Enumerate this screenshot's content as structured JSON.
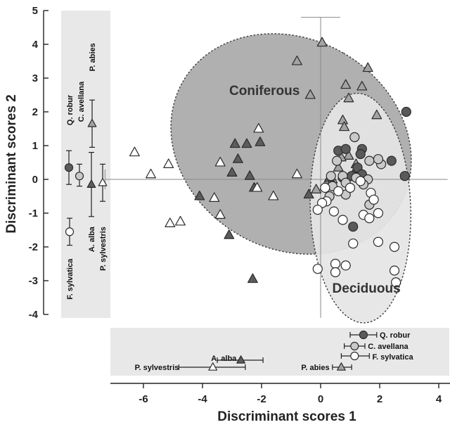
{
  "chart_data": {
    "type": "scatter",
    "xlabel": "Discriminant scores 1",
    "ylabel": "Discriminant scores 2",
    "xlim": [
      -7.3,
      4.3
    ],
    "ylim": [
      -4.1,
      5.1
    ],
    "x_ticks": [
      -6,
      -4,
      -2,
      0,
      2,
      4
    ],
    "y_ticks": [
      -4,
      -3,
      -2,
      -1,
      0,
      1,
      2,
      3,
      4,
      5
    ],
    "grid": false,
    "groups": [
      {
        "label": "Coniferous",
        "label_x": -1.9,
        "label_y": 2.5,
        "cx": -1.0,
        "cy": 1.05,
        "rx": 3.55,
        "ry": 3.7,
        "angle": 60,
        "fill": "#a9a9a9"
      },
      {
        "label": "Deciduous",
        "label_x": 1.55,
        "label_y": -3.35,
        "cx": 1.35,
        "cy": -0.85,
        "rx": 1.7,
        "ry": 3.4,
        "angle": 2,
        "fill": "#e5e5e5"
      }
    ],
    "series": [
      {
        "name": "P. abies",
        "marker": "triangle",
        "fill": "#a3a3a3",
        "points": [
          [
            0.05,
            4.05
          ],
          [
            -0.8,
            3.5
          ],
          [
            0.85,
            2.8
          ],
          [
            1.6,
            3.3
          ],
          [
            -0.35,
            2.5
          ],
          [
            1.4,
            2.75
          ],
          [
            0.95,
            2.4
          ],
          [
            1.9,
            1.9
          ],
          [
            0.75,
            1.75
          ],
          [
            0.8,
            1.55
          ],
          [
            0.95,
            0.7
          ],
          [
            1.2,
            0.45
          ],
          [
            0.7,
            0.65
          ],
          [
            0.6,
            0.35
          ],
          [
            1.3,
            0.3
          ],
          [
            0.4,
            0.0
          ],
          [
            -0.15,
            -0.3
          ]
        ]
      },
      {
        "name": "A. alba",
        "marker": "triangle",
        "fill": "#5c5c5c",
        "points": [
          [
            -2.9,
            1.05
          ],
          [
            -2.8,
            0.6
          ],
          [
            -2.05,
            1.1
          ],
          [
            -2.5,
            1.05
          ],
          [
            -3.0,
            0.2
          ],
          [
            -2.4,
            0.1
          ],
          [
            -4.1,
            -0.5
          ],
          [
            -2.25,
            -0.25
          ],
          [
            -3.1,
            -1.65
          ],
          [
            -2.3,
            -2.95
          ],
          [
            -0.4,
            -0.45
          ],
          [
            1.2,
            0.3
          ],
          [
            0.3,
            0.05
          ]
        ]
      },
      {
        "name": "P. sylvestris",
        "marker": "triangle",
        "fill": "#ffffff",
        "points": [
          [
            -6.3,
            0.8
          ],
          [
            -5.75,
            0.15
          ],
          [
            -5.15,
            0.45
          ],
          [
            -2.1,
            1.5
          ],
          [
            -3.4,
            0.5
          ],
          [
            -5.1,
            -1.3
          ],
          [
            -4.75,
            -1.25
          ],
          [
            -3.6,
            -0.55
          ],
          [
            -3.4,
            -1.05
          ],
          [
            -1.6,
            -0.5
          ],
          [
            -2.15,
            -0.25
          ],
          [
            -0.8,
            0.15
          ],
          [
            0.15,
            -0.2
          ]
        ]
      },
      {
        "name": "Q. robur",
        "marker": "circle",
        "fill": "#5a5a5a",
        "points": [
          [
            2.9,
            2.0
          ],
          [
            0.6,
            0.85
          ],
          [
            0.85,
            0.9
          ],
          [
            1.4,
            0.9
          ],
          [
            1.35,
            0.75
          ],
          [
            1.05,
            0.1
          ],
          [
            0.75,
            0.05
          ],
          [
            2.4,
            0.55
          ],
          [
            1.25,
            0.35
          ],
          [
            1.4,
            0.15
          ],
          [
            2.85,
            0.1
          ],
          [
            1.1,
            -1.4
          ]
        ]
      },
      {
        "name": "C. avellana",
        "marker": "circle",
        "fill": "#c9c9c9",
        "points": [
          [
            1.15,
            1.25
          ],
          [
            2.05,
            0.45
          ],
          [
            1.95,
            0.6
          ],
          [
            1.65,
            0.55
          ],
          [
            0.55,
            0.55
          ],
          [
            0.35,
            0.1
          ],
          [
            0.75,
            0.1
          ],
          [
            1.6,
            0.0
          ],
          [
            1.2,
            0.05
          ],
          [
            0.4,
            -0.2
          ],
          [
            1.45,
            -0.15
          ],
          [
            0.85,
            -0.1
          ],
          [
            0.3,
            -0.5
          ],
          [
            0.85,
            -0.45
          ],
          [
            1.65,
            -0.75
          ]
        ]
      },
      {
        "name": "F. sylvatica",
        "marker": "circle",
        "fill": "#ffffff",
        "points": [
          [
            0.15,
            -0.25
          ],
          [
            0.6,
            -0.35
          ],
          [
            1.0,
            -0.25
          ],
          [
            1.35,
            -0.05
          ],
          [
            1.7,
            -0.4
          ],
          [
            1.8,
            -0.6
          ],
          [
            0.2,
            -0.65
          ],
          [
            0.05,
            -0.7
          ],
          [
            -0.1,
            -0.9
          ],
          [
            0.45,
            -0.95
          ],
          [
            0.75,
            -1.2
          ],
          [
            1.45,
            -1.05
          ],
          [
            1.65,
            -1.15
          ],
          [
            1.95,
            -1.0
          ],
          [
            1.1,
            -1.9
          ],
          [
            1.95,
            -1.85
          ],
          [
            2.5,
            -2.0
          ],
          [
            0.5,
            -2.5
          ],
          [
            0.85,
            -2.55
          ],
          [
            0.5,
            -2.75
          ],
          [
            -0.1,
            -2.65
          ],
          [
            2.5,
            -2.7
          ],
          [
            2.55,
            -3.05
          ]
        ]
      }
    ],
    "y_side_panel": {
      "labels": [
        {
          "text": "Q. robur",
          "anchor_y": 1.6
        },
        {
          "text": "C. avellana",
          "anchor_y": 1.7
        },
        {
          "text": "P. abies",
          "anchor_y": 3.2
        },
        {
          "text": "F. sylvatica",
          "anchor_y": -2.35
        },
        {
          "text": "A. alba",
          "anchor_y": -1.4
        },
        {
          "text": "P. sylvestris",
          "anchor_y": -1.4
        }
      ],
      "means": [
        {
          "series": "F. sylvatica",
          "mean": -1.55,
          "low": -1.95,
          "high": -1.15,
          "marker": "circle",
          "fill": "#ffffff"
        },
        {
          "series": "Q. robur",
          "mean": 0.35,
          "low": -0.15,
          "high": 0.85,
          "marker": "circle",
          "fill": "#5a5a5a"
        },
        {
          "series": "C. avellana",
          "mean": 0.1,
          "low": -0.2,
          "high": 0.45,
          "marker": "circle",
          "fill": "#c9c9c9"
        },
        {
          "series": "A. alba",
          "mean": -0.15,
          "low": -1.1,
          "high": 0.8,
          "marker": "triangle",
          "fill": "#5c5c5c"
        },
        {
          "series": "P. abies",
          "mean": 1.65,
          "low": 0.95,
          "high": 2.35,
          "marker": "triangle",
          "fill": "#a3a3a3"
        },
        {
          "series": "P. sylvestris",
          "mean": -0.1,
          "low": -0.65,
          "high": 0.45,
          "marker": "triangle",
          "fill": "#ffffff"
        }
      ]
    },
    "x_side_panel": {
      "labels": [
        {
          "text": "Q. robur",
          "side": "right"
        },
        {
          "text": "C. avellana",
          "side": "right"
        },
        {
          "text": "F. sylvatica",
          "side": "right"
        },
        {
          "text": "A. alba",
          "side": "left"
        },
        {
          "text": "P. sylvestris",
          "side": "left"
        },
        {
          "text": "P. abies",
          "side": "left"
        }
      ],
      "means": [
        {
          "series": "Q. robur",
          "mean": 1.45,
          "low": 1.0,
          "high": 1.9,
          "marker": "circle",
          "fill": "#5a5a5a"
        },
        {
          "series": "C. avellana",
          "mean": 1.15,
          "low": 0.8,
          "high": 1.5,
          "marker": "circle",
          "fill": "#c9c9c9"
        },
        {
          "series": "F. sylvatica",
          "mean": 1.15,
          "low": 0.7,
          "high": 1.65,
          "marker": "circle",
          "fill": "#ffffff"
        },
        {
          "series": "A. alba",
          "mean": -2.7,
          "low": -3.5,
          "high": -1.95,
          "marker": "triangle",
          "fill": "#5c5c5c"
        },
        {
          "series": "P. sylvestris",
          "mean": -3.65,
          "low": -4.8,
          "high": -2.55,
          "marker": "triangle",
          "fill": "#ffffff"
        },
        {
          "series": "P. abies",
          "mean": 0.7,
          "low": 0.4,
          "high": 1.05,
          "marker": "triangle",
          "fill": "#a3a3a3"
        }
      ]
    }
  }
}
